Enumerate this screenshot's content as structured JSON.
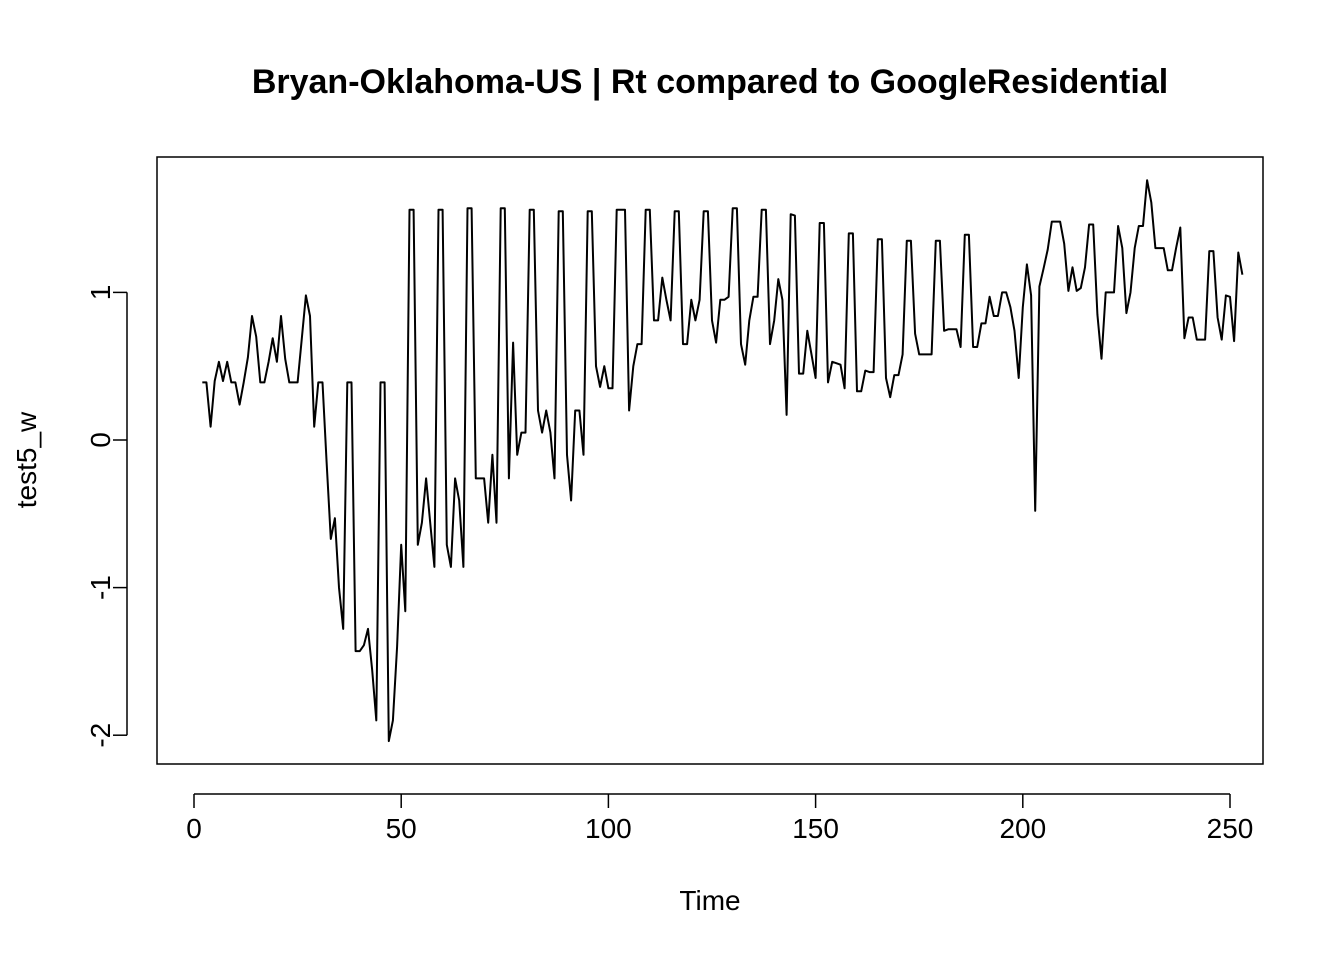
{
  "chart_data": {
    "type": "line",
    "title": "Bryan-Oklahoma-US | Rt compared to GoogleResidential",
    "xlabel": "Time",
    "ylabel": "test5_w",
    "xlim": [
      1,
      248
    ],
    "ylim": [
      -2.05,
      1.77
    ],
    "x_ticks": [
      0,
      50,
      100,
      150,
      200,
      250
    ],
    "y_ticks": [
      -2,
      -1,
      0,
      1
    ],
    "grid": false,
    "legend": "none",
    "line_color": "#000000",
    "series": [
      {
        "x_start": 2,
        "values": [
          0.39,
          0.39,
          0.09,
          0.4,
          0.53,
          0.4,
          0.53,
          0.39,
          0.39,
          0.24,
          0.39,
          0.56,
          0.84,
          0.7,
          0.39,
          0.39,
          0.53,
          0.69,
          0.53,
          0.84,
          0.55,
          0.39,
          0.39,
          0.39,
          0.68,
          0.98,
          0.84,
          0.09,
          0.39,
          0.39,
          -0.15,
          -0.67,
          -0.53,
          -1.0,
          -1.28,
          0.39,
          0.39,
          -1.43,
          -1.43,
          -1.39,
          -1.28,
          -1.56,
          -1.9,
          0.39,
          0.39,
          -2.04,
          -1.9,
          -1.4,
          -0.71,
          -1.16,
          1.56,
          1.56,
          -0.71,
          -0.56,
          -0.26,
          -0.56,
          -0.86,
          1.56,
          1.56,
          -0.71,
          -0.86,
          -0.26,
          -0.41,
          -0.86,
          1.57,
          1.57,
          -0.26,
          -0.26,
          -0.26,
          -0.56,
          -0.1,
          -0.56,
          1.57,
          1.57,
          -0.26,
          0.66,
          -0.1,
          0.05,
          0.05,
          1.56,
          1.56,
          0.2,
          0.05,
          0.2,
          0.05,
          -0.26,
          1.55,
          1.55,
          -0.1,
          -0.41,
          0.2,
          0.2,
          -0.1,
          1.55,
          1.55,
          0.5,
          0.36,
          0.5,
          0.35,
          0.35,
          1.56,
          1.56,
          1.56,
          0.2,
          0.5,
          0.65,
          0.65,
          1.56,
          1.56,
          0.81,
          0.81,
          1.1,
          0.95,
          0.81,
          1.55,
          1.55,
          0.65,
          0.65,
          0.95,
          0.81,
          0.95,
          1.55,
          1.55,
          0.81,
          0.66,
          0.95,
          0.95,
          0.97,
          1.57,
          1.57,
          0.65,
          0.51,
          0.81,
          0.97,
          0.97,
          1.56,
          1.56,
          0.65,
          0.81,
          1.09,
          0.95,
          0.17,
          1.53,
          1.52,
          0.45,
          0.45,
          0.74,
          0.58,
          0.42,
          1.47,
          1.47,
          0.39,
          0.53,
          0.52,
          0.51,
          0.35,
          1.4,
          1.4,
          0.33,
          0.33,
          0.47,
          0.46,
          0.46,
          1.36,
          1.36,
          0.42,
          0.29,
          0.44,
          0.44,
          0.58,
          1.35,
          1.35,
          0.72,
          0.58,
          0.58,
          0.58,
          0.58,
          1.35,
          1.35,
          0.74,
          0.75,
          0.75,
          0.75,
          0.63,
          1.39,
          1.39,
          0.63,
          0.63,
          0.79,
          0.79,
          0.97,
          0.84,
          0.84,
          1.0,
          1.0,
          0.9,
          0.74,
          0.42,
          0.9,
          1.19,
          0.98,
          -0.48,
          1.04,
          1.16,
          1.29,
          1.48,
          1.48,
          1.48,
          1.33,
          1.01,
          1.17,
          1.01,
          1.03,
          1.17,
          1.46,
          1.46,
          0.85,
          0.55,
          1.0,
          1.0,
          1.0,
          1.45,
          1.3,
          0.86,
          1.0,
          1.3,
          1.45,
          1.45,
          1.76,
          1.61,
          1.3,
          1.3,
          1.3,
          1.15,
          1.15,
          1.3,
          1.44,
          0.69,
          0.83,
          0.83,
          0.68,
          0.68,
          0.68,
          1.28,
          1.28,
          0.83,
          0.68,
          0.98,
          0.97,
          0.67,
          1.27,
          1.12
        ]
      }
    ]
  }
}
